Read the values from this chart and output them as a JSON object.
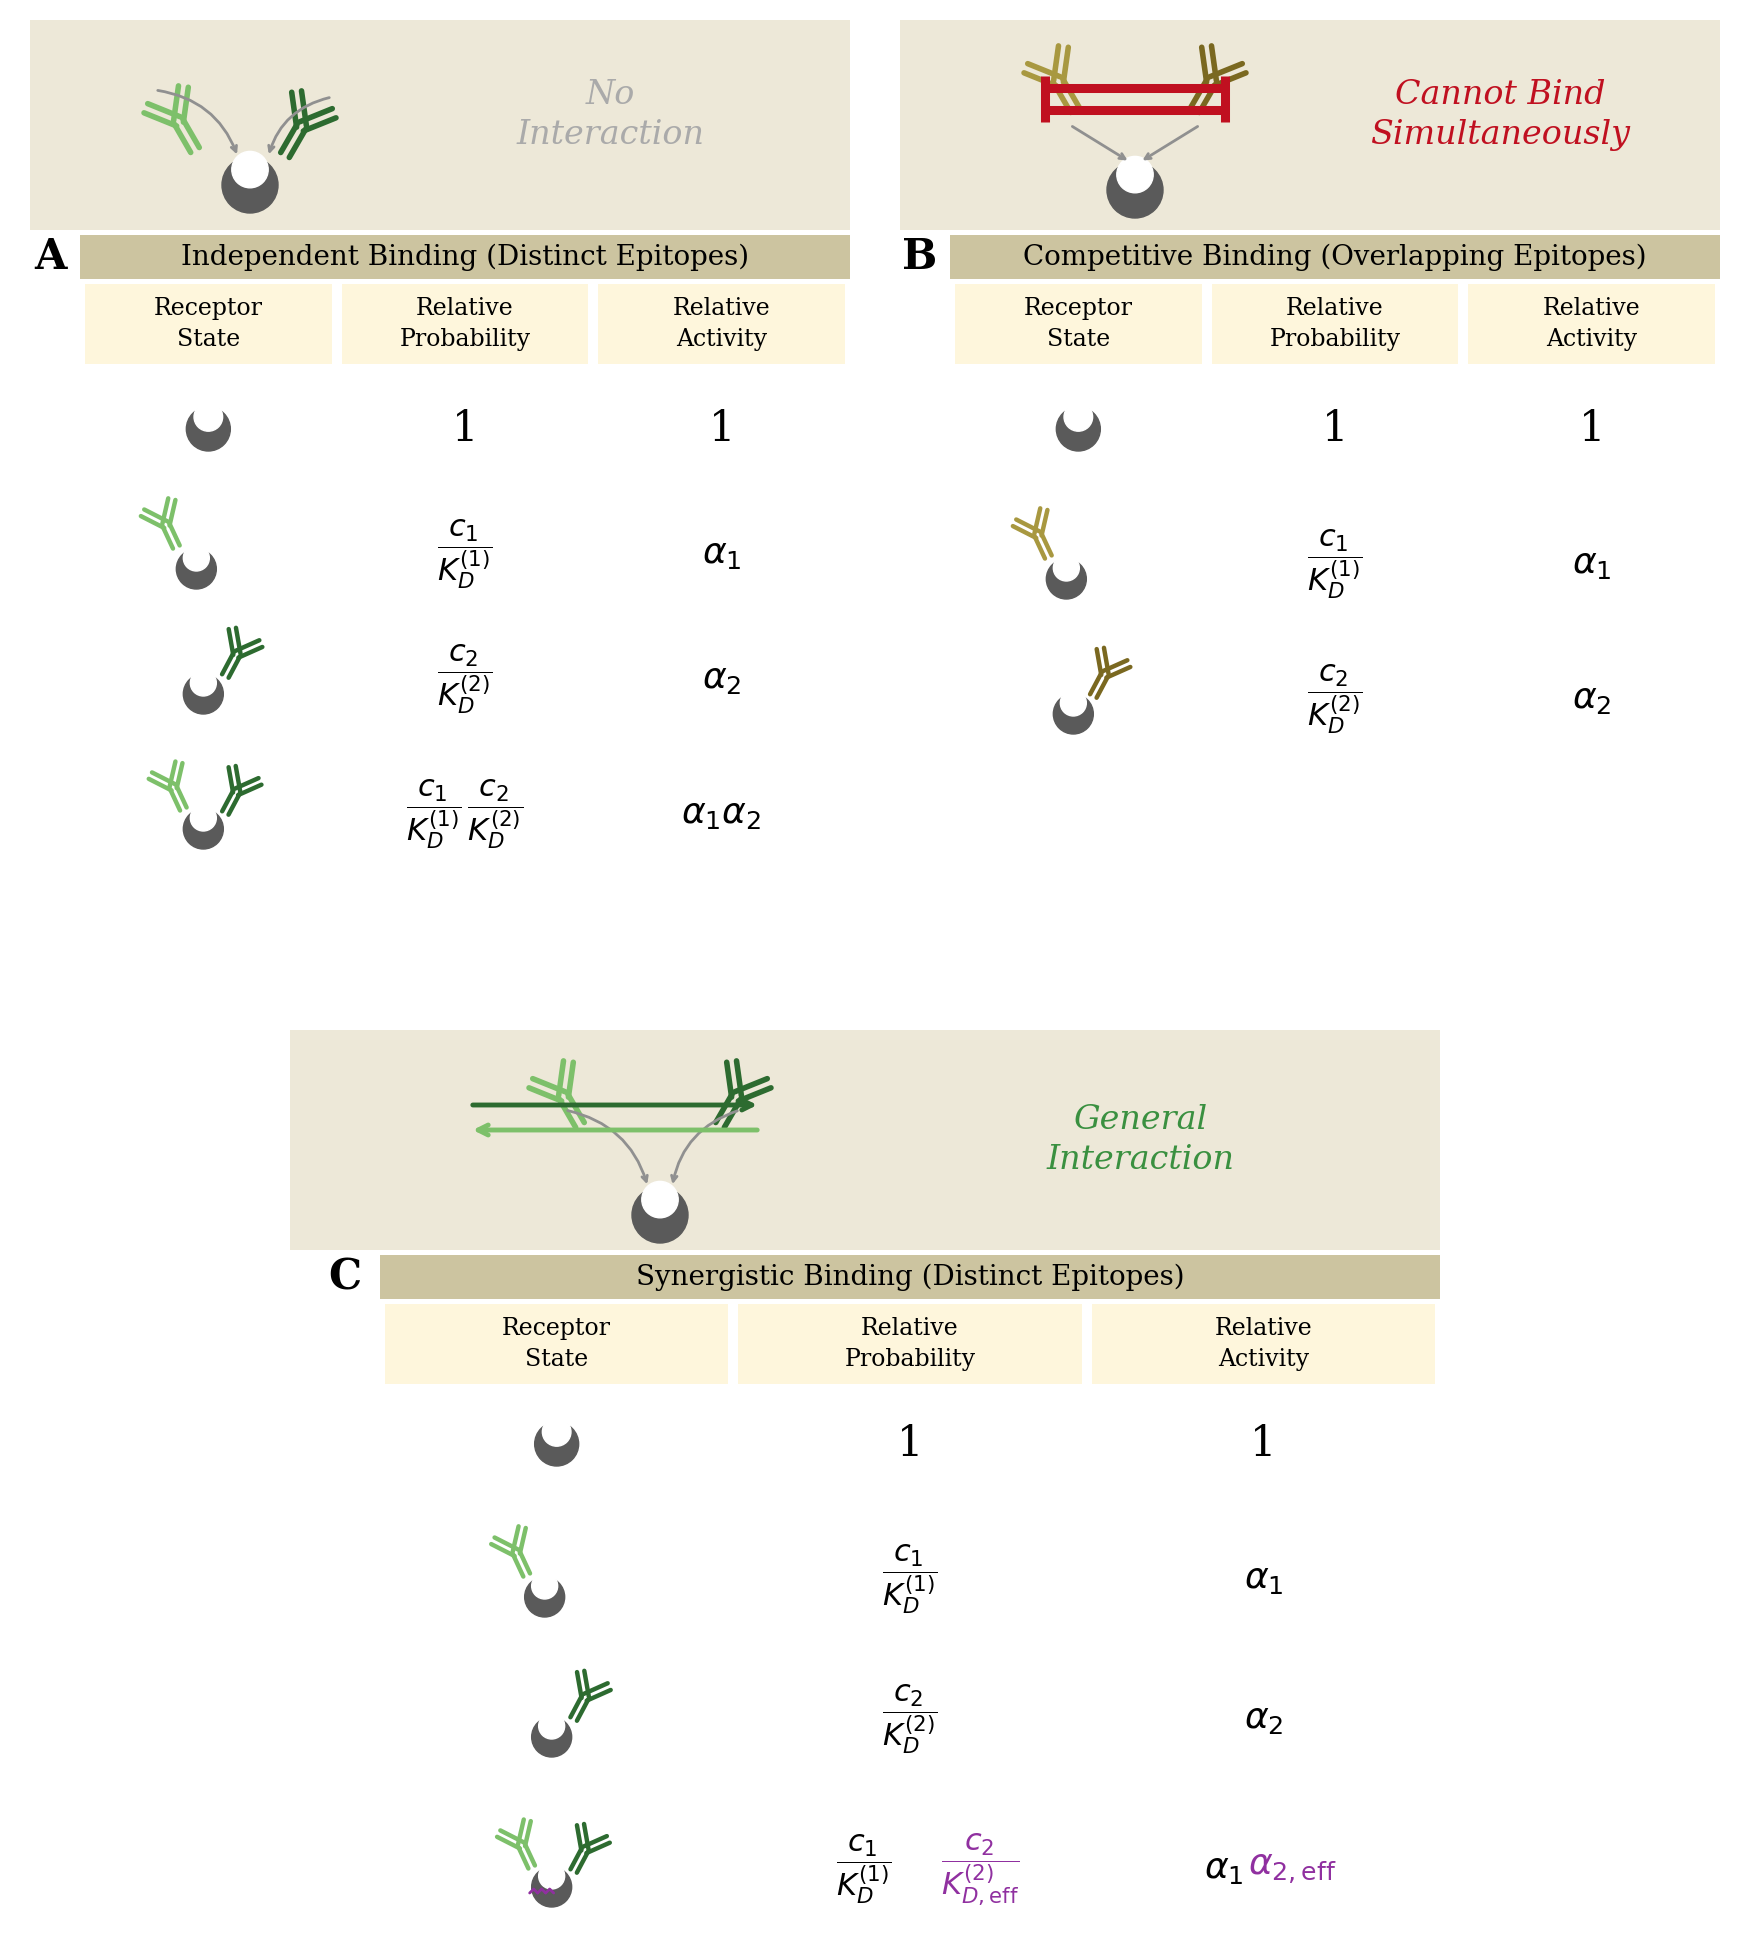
{
  "bg_color": "#ffffff",
  "panel_bg": "#ede8d8",
  "table_header_bg": "#ccc4a0",
  "table_cell_bg": "#fef6dc",
  "light_green": "#7DC06A",
  "dark_green": "#2D6B30",
  "olive_light": "#A89840",
  "olive_dark": "#7A6820",
  "receptor_gray": "#5a5a5a",
  "crimson": "#C01020",
  "text_gray": "#aaaaaa",
  "green_italic": "#3A9040",
  "purple": "#9030A0",
  "title_A": "Independent Binding (Distinct Epitopes)",
  "title_B": "Competitive Binding (Overlapping Epitopes)",
  "title_C": "Synergistic Binding (Distinct Epitopes)",
  "label_A": "A",
  "label_B": "B",
  "label_C": "C"
}
